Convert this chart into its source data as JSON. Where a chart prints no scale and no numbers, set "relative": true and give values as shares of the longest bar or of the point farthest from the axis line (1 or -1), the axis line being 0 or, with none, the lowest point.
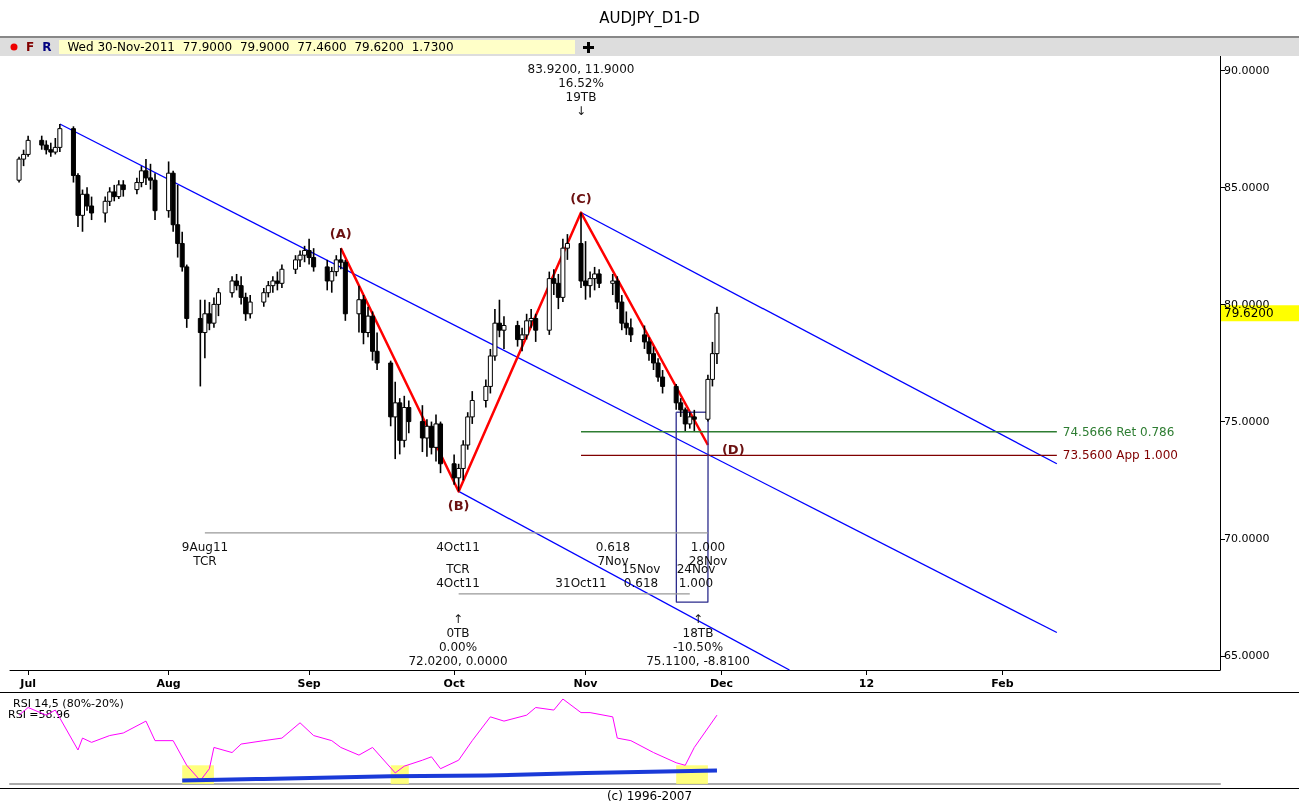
{
  "chart_data": [
    {
      "type": "candlestick",
      "title": "AUDJPY_D1-D",
      "marker": "none",
      "xlim": [
        "2011-06-27",
        "2012-03-20"
      ],
      "xticks": [
        {
          "value": "2011-07-01",
          "label": "Jul"
        },
        {
          "value": "2011-08-01",
          "label": "Aug"
        },
        {
          "value": "2011-09-01",
          "label": "Sep"
        },
        {
          "value": "2011-10-03",
          "label": "Oct"
        },
        {
          "value": "2011-11-01",
          "label": "Nov"
        },
        {
          "value": "2011-12-01",
          "label": "Dec"
        },
        {
          "value": "2012-01-02",
          "label": "12"
        },
        {
          "value": "2012-02-01",
          "label": "Feb"
        }
      ],
      "ylim": [
        64.4,
        90.6
      ],
      "yticks": [
        {
          "value": 65,
          "label": "65.0000"
        },
        {
          "value": 70,
          "label": "70.0000"
        },
        {
          "value": 75,
          "label": "75.0000"
        },
        {
          "value": 80,
          "label": "80.0000"
        },
        {
          "value": 85,
          "label": "85.0000"
        },
        {
          "value": 90,
          "label": "90.0000"
        }
      ],
      "series": [
        {
          "color": "#000000",
          "x": [
            "2011-06-29",
            "2011-06-30",
            "2011-07-01",
            "2011-07-04",
            "2011-07-05",
            "2011-07-06",
            "2011-07-07",
            "2011-07-08",
            "2011-07-11",
            "2011-07-12",
            "2011-07-13",
            "2011-07-14",
            "2011-07-15",
            "2011-07-18",
            "2011-07-19",
            "2011-07-20",
            "2011-07-21",
            "2011-07-22",
            "2011-07-25",
            "2011-07-26",
            "2011-07-27",
            "2011-07-28",
            "2011-07-29",
            "2011-08-01",
            "2011-08-02",
            "2011-08-03",
            "2011-08-04",
            "2011-08-05",
            "2011-08-08",
            "2011-08-09",
            "2011-08-10",
            "2011-08-11",
            "2011-08-12",
            "2011-08-15",
            "2011-08-16",
            "2011-08-17",
            "2011-08-18",
            "2011-08-19",
            "2011-08-22",
            "2011-08-23",
            "2011-08-24",
            "2011-08-25",
            "2011-08-26",
            "2011-08-29",
            "2011-08-30",
            "2011-08-31",
            "2011-09-01",
            "2011-09-02",
            "2011-09-05",
            "2011-09-06",
            "2011-09-07",
            "2011-09-08",
            "2011-09-09",
            "2011-09-12",
            "2011-09-13",
            "2011-09-14",
            "2011-09-15",
            "2011-09-16",
            "2011-09-19",
            "2011-09-20",
            "2011-09-21",
            "2011-09-22",
            "2011-09-23",
            "2011-09-26",
            "2011-09-27",
            "2011-09-28",
            "2011-09-29",
            "2011-09-30",
            "2011-10-03",
            "2011-10-04",
            "2011-10-05",
            "2011-10-06",
            "2011-10-07",
            "2011-10-10",
            "2011-10-11",
            "2011-10-12",
            "2011-10-13",
            "2011-10-14",
            "2011-10-17",
            "2011-10-18",
            "2011-10-19",
            "2011-10-20",
            "2011-10-21",
            "2011-10-24",
            "2011-10-25",
            "2011-10-26",
            "2011-10-27",
            "2011-10-28",
            "2011-10-31",
            "2011-11-01",
            "2011-11-02",
            "2011-11-03",
            "2011-11-04",
            "2011-11-07",
            "2011-11-08",
            "2011-11-09",
            "2011-11-10",
            "2011-11-11",
            "2011-11-14",
            "2011-11-15",
            "2011-11-16",
            "2011-11-17",
            "2011-11-18",
            "2011-11-21",
            "2011-11-22",
            "2011-11-23",
            "2011-11-24",
            "2011-11-25",
            "2011-11-28",
            "2011-11-29",
            "2011-11-30"
          ],
          "ohlc": [
            [
              85.3,
              86.3,
              85.2,
              86.2
            ],
            [
              86.2,
              86.6,
              85.9,
              86.4
            ],
            [
              86.4,
              87.2,
              86.3,
              87.0
            ],
            [
              87.0,
              87.2,
              86.6,
              86.8
            ],
            [
              86.8,
              87.0,
              86.4,
              86.6
            ],
            [
              86.6,
              86.9,
              86.3,
              86.5
            ],
            [
              86.5,
              87.1,
              86.4,
              86.7
            ],
            [
              86.7,
              87.7,
              86.5,
              87.5
            ],
            [
              87.5,
              87.6,
              85.2,
              85.5
            ],
            [
              85.5,
              85.6,
              83.3,
              83.8
            ],
            [
              83.8,
              84.9,
              83.1,
              84.7
            ],
            [
              84.7,
              85.0,
              84.0,
              84.2
            ],
            [
              84.2,
              84.6,
              83.6,
              83.9
            ],
            [
              83.9,
              84.6,
              83.5,
              84.4
            ],
            [
              84.4,
              85.0,
              84.2,
              84.8
            ],
            [
              84.8,
              85.1,
              84.4,
              84.6
            ],
            [
              84.6,
              85.3,
              84.5,
              85.1
            ],
            [
              85.1,
              85.3,
              84.6,
              84.9
            ],
            [
              84.9,
              85.4,
              84.7,
              85.2
            ],
            [
              85.2,
              85.9,
              85.0,
              85.7
            ],
            [
              85.7,
              86.2,
              85.1,
              85.4
            ],
            [
              85.4,
              86.0,
              84.9,
              85.3
            ],
            [
              85.3,
              85.6,
              83.6,
              84.0
            ],
            [
              84.0,
              86.1,
              83.7,
              85.6
            ],
            [
              85.6,
              85.7,
              83.1,
              83.4
            ],
            [
              83.4,
              85.1,
              82.0,
              82.6
            ],
            [
              82.6,
              83.1,
              81.4,
              81.6
            ],
            [
              81.6,
              81.7,
              79.0,
              79.4
            ],
            [
              79.4,
              80.2,
              76.5,
              78.8
            ],
            [
              78.8,
              80.2,
              77.7,
              79.6
            ],
            [
              79.6,
              80.1,
              78.9,
              79.2
            ],
            [
              79.2,
              80.3,
              79.0,
              80.0
            ],
            [
              80.0,
              80.7,
              79.5,
              80.5
            ],
            [
              80.5,
              81.2,
              80.3,
              81.0
            ],
            [
              81.0,
              81.3,
              80.6,
              80.8
            ],
            [
              80.8,
              81.2,
              80.0,
              80.3
            ],
            [
              80.3,
              80.5,
              79.3,
              79.6
            ],
            [
              79.6,
              80.4,
              79.4,
              80.1
            ],
            [
              80.1,
              80.7,
              79.9,
              80.5
            ],
            [
              80.5,
              81.0,
              80.3,
              80.8
            ],
            [
              80.8,
              81.2,
              80.5,
              81.0
            ],
            [
              81.0,
              81.4,
              80.6,
              80.9
            ],
            [
              80.9,
              81.7,
              80.7,
              81.5
            ],
            [
              81.5,
              82.1,
              81.3,
              81.9
            ],
            [
              81.9,
              82.3,
              81.6,
              82.1
            ],
            [
              82.1,
              82.5,
              81.8,
              82.3
            ],
            [
              82.3,
              82.8,
              81.7,
              82.0
            ],
            [
              82.0,
              82.4,
              81.4,
              81.6
            ],
            [
              81.6,
              81.9,
              80.6,
              81.0
            ],
            [
              81.0,
              81.6,
              80.5,
              81.4
            ],
            [
              81.4,
              82.1,
              81.2,
              81.9
            ],
            [
              81.9,
              82.4,
              81.5,
              81.8
            ],
            [
              81.8,
              81.9,
              79.3,
              79.6
            ],
            [
              79.6,
              80.8,
              78.8,
              80.2
            ],
            [
              80.2,
              80.4,
              78.3,
              78.8
            ],
            [
              78.8,
              79.9,
              78.6,
              79.5
            ],
            [
              79.5,
              79.7,
              77.6,
              78.0
            ],
            [
              78.0,
              78.8,
              77.2,
              77.5
            ],
            [
              77.5,
              77.6,
              74.8,
              75.2
            ],
            [
              75.2,
              76.7,
              73.4,
              75.8
            ],
            [
              75.8,
              76.0,
              73.6,
              74.2
            ],
            [
              74.2,
              76.1,
              73.9,
              75.6
            ],
            [
              75.6,
              75.9,
              74.5,
              75.0
            ],
            [
              75.0,
              75.7,
              73.7,
              74.3
            ],
            [
              74.3,
              75.1,
              73.5,
              74.8
            ],
            [
              74.8,
              75.0,
              73.6,
              73.9
            ],
            [
              73.9,
              75.3,
              73.3,
              74.9
            ],
            [
              74.9,
              75.0,
              72.8,
              73.2
            ],
            [
              73.2,
              73.6,
              72.3,
              72.6
            ],
            [
              72.6,
              73.2,
              72.02,
              73.0
            ],
            [
              73.0,
              74.2,
              72.5,
              74.0
            ],
            [
              74.0,
              75.4,
              73.8,
              75.2
            ],
            [
              75.2,
              76.3,
              74.9,
              75.9
            ],
            [
              75.9,
              76.8,
              75.6,
              76.5
            ],
            [
              76.5,
              78.1,
              76.2,
              77.8
            ],
            [
              77.8,
              79.8,
              77.6,
              79.2
            ],
            [
              79.2,
              80.2,
              78.6,
              78.9
            ],
            [
              78.9,
              79.5,
              78.1,
              79.1
            ],
            [
              79.1,
              79.3,
              78.2,
              78.5
            ],
            [
              78.5,
              79.0,
              78.0,
              78.7
            ],
            [
              78.7,
              79.6,
              78.5,
              79.3
            ],
            [
              79.3,
              79.8,
              79.0,
              79.4
            ],
            [
              79.4,
              79.6,
              78.4,
              78.9
            ],
            [
              78.9,
              81.4,
              78.7,
              81.1
            ],
            [
              81.1,
              81.5,
              80.4,
              80.9
            ],
            [
              80.9,
              81.3,
              79.8,
              80.3
            ],
            [
              80.3,
              82.8,
              80.1,
              82.4
            ],
            [
              82.4,
              83.0,
              81.9,
              82.6
            ],
            [
              82.6,
              83.92,
              80.7,
              81.0
            ],
            [
              81.0,
              82.7,
              80.2,
              80.8
            ],
            [
              80.8,
              81.4,
              80.3,
              81.1
            ],
            [
              81.1,
              81.6,
              80.6,
              81.3
            ],
            [
              81.3,
              81.5,
              80.7,
              80.9
            ],
            [
              80.9,
              81.3,
              80.4,
              81.0
            ],
            [
              81.0,
              81.2,
              79.8,
              80.1
            ],
            [
              80.1,
              80.4,
              78.9,
              79.2
            ],
            [
              79.2,
              79.7,
              78.7,
              79.0
            ],
            [
              79.0,
              79.4,
              78.4,
              78.7
            ],
            [
              78.7,
              79.1,
              78.1,
              78.4
            ],
            [
              78.4,
              78.6,
              77.6,
              77.9
            ],
            [
              77.9,
              78.2,
              77.2,
              77.5
            ],
            [
              77.5,
              77.7,
              76.7,
              76.9
            ],
            [
              76.9,
              77.2,
              76.2,
              76.5
            ],
            [
              76.5,
              76.6,
              75.5,
              75.8
            ],
            [
              75.8,
              76.0,
              75.2,
              75.5
            ],
            [
              75.5,
              75.6,
              74.6,
              74.9
            ],
            [
              74.9,
              75.4,
              74.7,
              75.2
            ],
            [
              75.2,
              75.5,
              74.6,
              75.1
            ],
            [
              75.1,
              77.0,
              75.0,
              76.8
            ],
            [
              76.8,
              78.4,
              76.5,
              77.9
            ],
            [
              77.9,
              79.9,
              77.46,
              79.62
            ]
          ]
        },
        {
          "type": "line",
          "color": "#0000ff",
          "x": [
            "2011-07-08",
            "2012-02-13"
          ],
          "values": [
            87.7,
            66.0
          ]
        },
        {
          "type": "line",
          "color": "#0000ff",
          "x": [
            "2011-10-31",
            "2012-02-13"
          ],
          "values": [
            83.92,
            73.2
          ]
        },
        {
          "type": "line",
          "color": "#0000ff",
          "x": [
            "2011-10-04",
            "2011-12-16"
          ],
          "values": [
            72.02,
            64.4
          ]
        },
        {
          "type": "line",
          "color": "#ff0000",
          "x": [
            "2011-09-08",
            "2011-10-04",
            "2011-10-31",
            "2011-11-28"
          ],
          "values": [
            82.4,
            72.02,
            83.92,
            74.0
          ]
        },
        {
          "type": "line",
          "name": "74.5666 Ret 0.786",
          "color": "#2e7d32",
          "x": [
            "2011-10-31",
            "2012-02-13"
          ],
          "values": [
            74.5666,
            74.5666
          ]
        },
        {
          "type": "line",
          "name": "73.5600 App 1.000",
          "color": "#800000",
          "x": [
            "2011-10-31",
            "2012-02-13"
          ],
          "values": [
            73.56,
            73.56
          ]
        },
        {
          "type": "line",
          "color": "#2b2b8c",
          "x": [
            "2011-11-21T00:00",
            "2011-11-21T01:00",
            "2011-11-28T00:00",
            "2011-11-28T01:00"
          ],
          "values": [
            75.4,
            67.3,
            67.3,
            75.4
          ]
        },
        {
          "type": "line",
          "color": "#2b2b8c",
          "x": [
            "2011-11-21",
            "2011-11-28"
          ],
          "values": [
            75.4,
            75.4
          ]
        },
        {
          "type": "line",
          "color": "#999999",
          "x": [
            "2011-08-09",
            "2011-11-28"
          ],
          "values": [
            70.25,
            70.25
          ]
        },
        {
          "type": "line",
          "color": "#999999",
          "x": [
            "2011-10-04",
            "2011-11-24"
          ],
          "values": [
            67.65,
            67.65
          ]
        }
      ],
      "annotations": [
        "F",
        "R",
        "Wed 30-Nov-2011  77.9000  79.9000  77.4600  79.6200  1.7300",
        "79.6200",
        "83.9200, 11.9000\n16.52%\n19TB\n↓",
        "9Aug11\nTCR",
        "4Oct11",
        "0.618\n7Nov",
        "1.000\n28Nov",
        "TCR\n4Oct11",
        "31Oct11",
        "15Nov\n0.618",
        "24Nov\n1.000",
        "↑\n0TB\n0.00%\n72.0200, 0.0000",
        "↑\n18TB\n-10.50%\n75.1100, -8.8100",
        {
          "text": "(A)",
          "x": "2011-09-08",
          "y": 82.4
        },
        {
          "text": "(B)",
          "x": "2011-10-04",
          "y": 72.02
        },
        {
          "text": "(C)",
          "x": "2011-10-31",
          "y": 83.92
        },
        {
          "text": "(D)",
          "x": "2011-11-28",
          "y": 74.0
        }
      ]
    },
    {
      "type": "line",
      "title": "RSI 14,5 (80%-20%)",
      "relative": true,
      "tick_labels": false,
      "marker": "none",
      "xlim": [
        "2011-06-27",
        "2012-03-20"
      ],
      "series": [
        {
          "color": "#ff00ff",
          "x": [
            "2011-06-29",
            "2011-07-01",
            "2011-07-05",
            "2011-07-07",
            "2011-07-12",
            "2011-07-13",
            "2011-07-15",
            "2011-07-19",
            "2011-07-22",
            "2011-07-27",
            "2011-07-29",
            "2011-08-02",
            "2011-08-05",
            "2011-08-08",
            "2011-08-10",
            "2011-08-11",
            "2011-08-15",
            "2011-08-17",
            "2011-08-22",
            "2011-08-26",
            "2011-08-30",
            "2011-09-02",
            "2011-09-06",
            "2011-09-08",
            "2011-09-12",
            "2011-09-15",
            "2011-09-20",
            "2011-09-22",
            "2011-09-26",
            "2011-09-28",
            "2011-09-30",
            "2011-10-04",
            "2011-10-07",
            "2011-10-11",
            "2011-10-14",
            "2011-10-19",
            "2011-10-21",
            "2011-10-25",
            "2011-10-27",
            "2011-10-31",
            "2011-11-02",
            "2011-11-07",
            "2011-11-08",
            "2011-11-11",
            "2011-11-16",
            "2011-11-21",
            "2011-11-23",
            "2011-11-25",
            "2011-11-30"
          ],
          "values": [
            0.81,
            0.9,
            0.81,
            0.87,
            0.4,
            0.54,
            0.49,
            0.57,
            0.6,
            0.74,
            0.51,
            0.51,
            0.22,
            0.04,
            0.18,
            0.43,
            0.37,
            0.47,
            0.51,
            0.54,
            0.72,
            0.57,
            0.51,
            0.43,
            0.34,
            0.43,
            0.13,
            0.21,
            0.28,
            0.32,
            0.18,
            0.28,
            0.51,
            0.79,
            0.74,
            0.81,
            0.9,
            0.87,
            1.0,
            0.84,
            0.84,
            0.79,
            0.54,
            0.51,
            0.37,
            0.25,
            0.22,
            0.43,
            0.81
          ]
        },
        {
          "color": "#1a3ad8",
          "x": [
            "2011-08-04",
            "2011-08-22",
            "2011-09-19",
            "2011-10-10",
            "2011-11-01",
            "2011-11-30"
          ],
          "values": [
            0.04,
            0.06,
            0.09,
            0.1,
            0.13,
            0.16
          ]
        }
      ],
      "bands": [
        {
          "axis": "x",
          "from": "2011-08-04",
          "to": "2011-08-11",
          "color": "#ffff66"
        },
        {
          "axis": "x",
          "from": "2011-09-19",
          "to": "2011-09-23",
          "color": "#ffff66"
        },
        {
          "axis": "x",
          "from": "2011-11-21",
          "to": "2011-11-28",
          "color": "#ffff66"
        }
      ],
      "annotations": [
        "RSI =58.96",
        "(c) 1996-2007"
      ]
    }
  ]
}
